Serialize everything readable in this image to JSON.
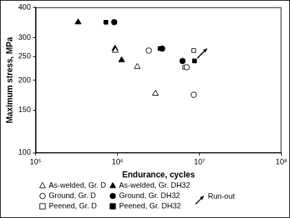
{
  "chart_data": {
    "type": "scatter",
    "x_label": "Endurance, cycles",
    "y_label": "Maximum stress, MPa",
    "log": true,
    "grid": false,
    "legend": "bottom-left",
    "xlim": [
      100000,
      100000000
    ],
    "xticks": [
      {
        "value": 100000,
        "label": "10⁵"
      },
      {
        "value": 1000000,
        "label": "10⁶"
      },
      {
        "value": 10000000,
        "label": "10⁷"
      },
      {
        "value": 100000000,
        "label": "10⁸"
      }
    ],
    "ylim": [
      100,
      400
    ],
    "yticks": [
      100,
      150,
      200,
      250,
      300,
      400
    ],
    "series": [
      {
        "name": "As-welded, Gr. D",
        "color": "#000000",
        "marker": "triangle-open",
        "x": [
          940000,
          1740000,
          2900000
        ],
        "values": [
          265,
          227,
          176
        ]
      },
      {
        "name": "Ground, Gr. D",
        "color": "#000000",
        "marker": "circle-open",
        "x": [
          2400000,
          7000000,
          8500000
        ],
        "values": [
          265,
          226,
          174
        ]
      },
      {
        "name": "Peened, Gr. D",
        "color": "#000000",
        "marker": "square-open",
        "x": [
          6600000,
          8500000
        ],
        "values": [
          226,
          265
        ]
      },
      {
        "name": "As-welded, Gr. DH32",
        "color": "#000000",
        "marker": "triangle",
        "x": [
          330000,
          930000,
          1120000
        ],
        "values": [
          347,
          270,
          242
        ]
      },
      {
        "name": "Ground, Gr. DH32",
        "color": "#000000",
        "marker": "circle",
        "x": [
          910000,
          3500000,
          6200000
        ],
        "values": [
          347,
          270,
          240
        ]
      },
      {
        "name": "Peened, Gr. DH32",
        "color": "#000000",
        "marker": "square",
        "x": [
          720000,
          3300000,
          8700000
        ],
        "values": [
          347,
          270,
          240
        ]
      }
    ],
    "annotations": [
      {
        "text": "Run-out",
        "x": 8700000,
        "y": 240
      }
    ]
  }
}
